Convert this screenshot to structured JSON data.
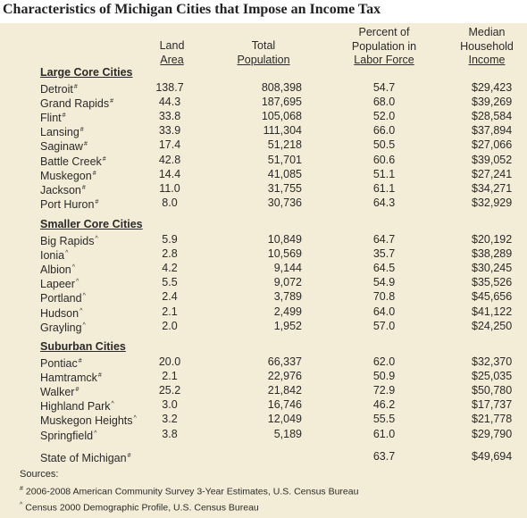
{
  "title": "Characteristics of Michigan Cities that Impose an Income Tax",
  "headers": {
    "land": [
      "Land",
      "Area"
    ],
    "pop": [
      "Total",
      "Population"
    ],
    "pct": [
      "Percent of",
      "Population in",
      "Labor Force"
    ],
    "inc": [
      "Median",
      "Household",
      "Income"
    ]
  },
  "sections": [
    {
      "label": "Large Core Cities",
      "rows": [
        {
          "name": "Detroit",
          "mark": "#",
          "land": "138.7",
          "pop": "808,398",
          "pct": "54.7",
          "inc": "$29,423"
        },
        {
          "name": "Grand Rapids",
          "mark": "#",
          "land": "44.3",
          "pop": "187,695",
          "pct": "68.0",
          "inc": "$39,269"
        },
        {
          "name": "Flint",
          "mark": "#",
          "land": "33.8",
          "pop": "105,068",
          "pct": "52.0",
          "inc": "$28,584"
        },
        {
          "name": "Lansing",
          "mark": "#",
          "land": "33.9",
          "pop": "111,304",
          "pct": "66.0",
          "inc": "$37,894"
        },
        {
          "name": "Saginaw",
          "mark": "#",
          "land": "17.4",
          "pop": "51,218",
          "pct": "50.5",
          "inc": "$27,066"
        },
        {
          "name": "Battle Creek",
          "mark": "#",
          "land": "42.8",
          "pop": "51,701",
          "pct": "60.6",
          "inc": "$39,052"
        },
        {
          "name": "Muskegon",
          "mark": "#",
          "land": "14.4",
          "pop": "41,085",
          "pct": "51.1",
          "inc": "$27,241"
        },
        {
          "name": "Jackson",
          "mark": "#",
          "land": "11.0",
          "pop": "31,755",
          "pct": "61.1",
          "inc": "$34,271"
        },
        {
          "name": "Port Huron",
          "mark": "#",
          "land": "8.0",
          "pop": "30,736",
          "pct": "64.3",
          "inc": "$32,929"
        }
      ]
    },
    {
      "label": "Smaller Core Cities",
      "rows": [
        {
          "name": "Big Rapids",
          "mark": "^",
          "land": "5.9",
          "pop": "10,849",
          "pct": "64.7",
          "inc": "$20,192"
        },
        {
          "name": "Ionia",
          "mark": "^",
          "land": "2.8",
          "pop": "10,569",
          "pct": "35.7",
          "inc": "$38,289"
        },
        {
          "name": "Albion",
          "mark": "^",
          "land": "4.2",
          "pop": "9,144",
          "pct": "64.5",
          "inc": "$30,245"
        },
        {
          "name": "Lapeer",
          "mark": "^",
          "land": "5.5",
          "pop": "9,072",
          "pct": "54.9",
          "inc": "$35,526"
        },
        {
          "name": "Portland",
          "mark": "^",
          "land": "2.4",
          "pop": "3,789",
          "pct": "70.8",
          "inc": "$45,656"
        },
        {
          "name": "Hudson",
          "mark": "^",
          "land": "2.1",
          "pop": "2,499",
          "pct": "64.0",
          "inc": "$41,122"
        },
        {
          "name": "Grayling",
          "mark": "^",
          "land": "2.0",
          "pop": "1,952",
          "pct": "57.0",
          "inc": "$24,250"
        }
      ]
    },
    {
      "label": "Suburban Cities",
      "rows": [
        {
          "name": "Pontiac",
          "mark": "#",
          "land": "20.0",
          "pop": "66,337",
          "pct": "62.0",
          "inc": "$32,370"
        },
        {
          "name": "Hamtramck",
          "mark": "#",
          "land": "2.1",
          "pop": "22,976",
          "pct": "50.9",
          "inc": "$25,035"
        },
        {
          "name": "Walker",
          "mark": "#",
          "land": "25.2",
          "pop": "21,842",
          "pct": "72.9",
          "inc": "$50,780"
        },
        {
          "name": "Highland Park",
          "mark": "^",
          "land": "3.0",
          "pop": "16,746",
          "pct": "46.2",
          "inc": "$17,737"
        },
        {
          "name": "Muskegon Heights",
          "mark": "^",
          "land": "3.2",
          "pop": "12,049",
          "pct": "55.5",
          "inc": "$21,778"
        },
        {
          "name": "Springfield",
          "mark": "^",
          "land": "3.8",
          "pop": "5,189",
          "pct": "61.0",
          "inc": "$29,790"
        }
      ]
    }
  ],
  "state": {
    "name": "State of Michigan",
    "mark": "#",
    "land": "",
    "pop": "",
    "pct": "63.7",
    "inc": "$49,694"
  },
  "sources_label": "Sources:",
  "notes": [
    {
      "mark": "#",
      "text": "2006-2008 American Community Survey 3-Year Estimates, U.S. Census Bureau"
    },
    {
      "mark": "^",
      "text": "Census 2000 Demographic Profile, U.S. Census Bureau"
    }
  ]
}
